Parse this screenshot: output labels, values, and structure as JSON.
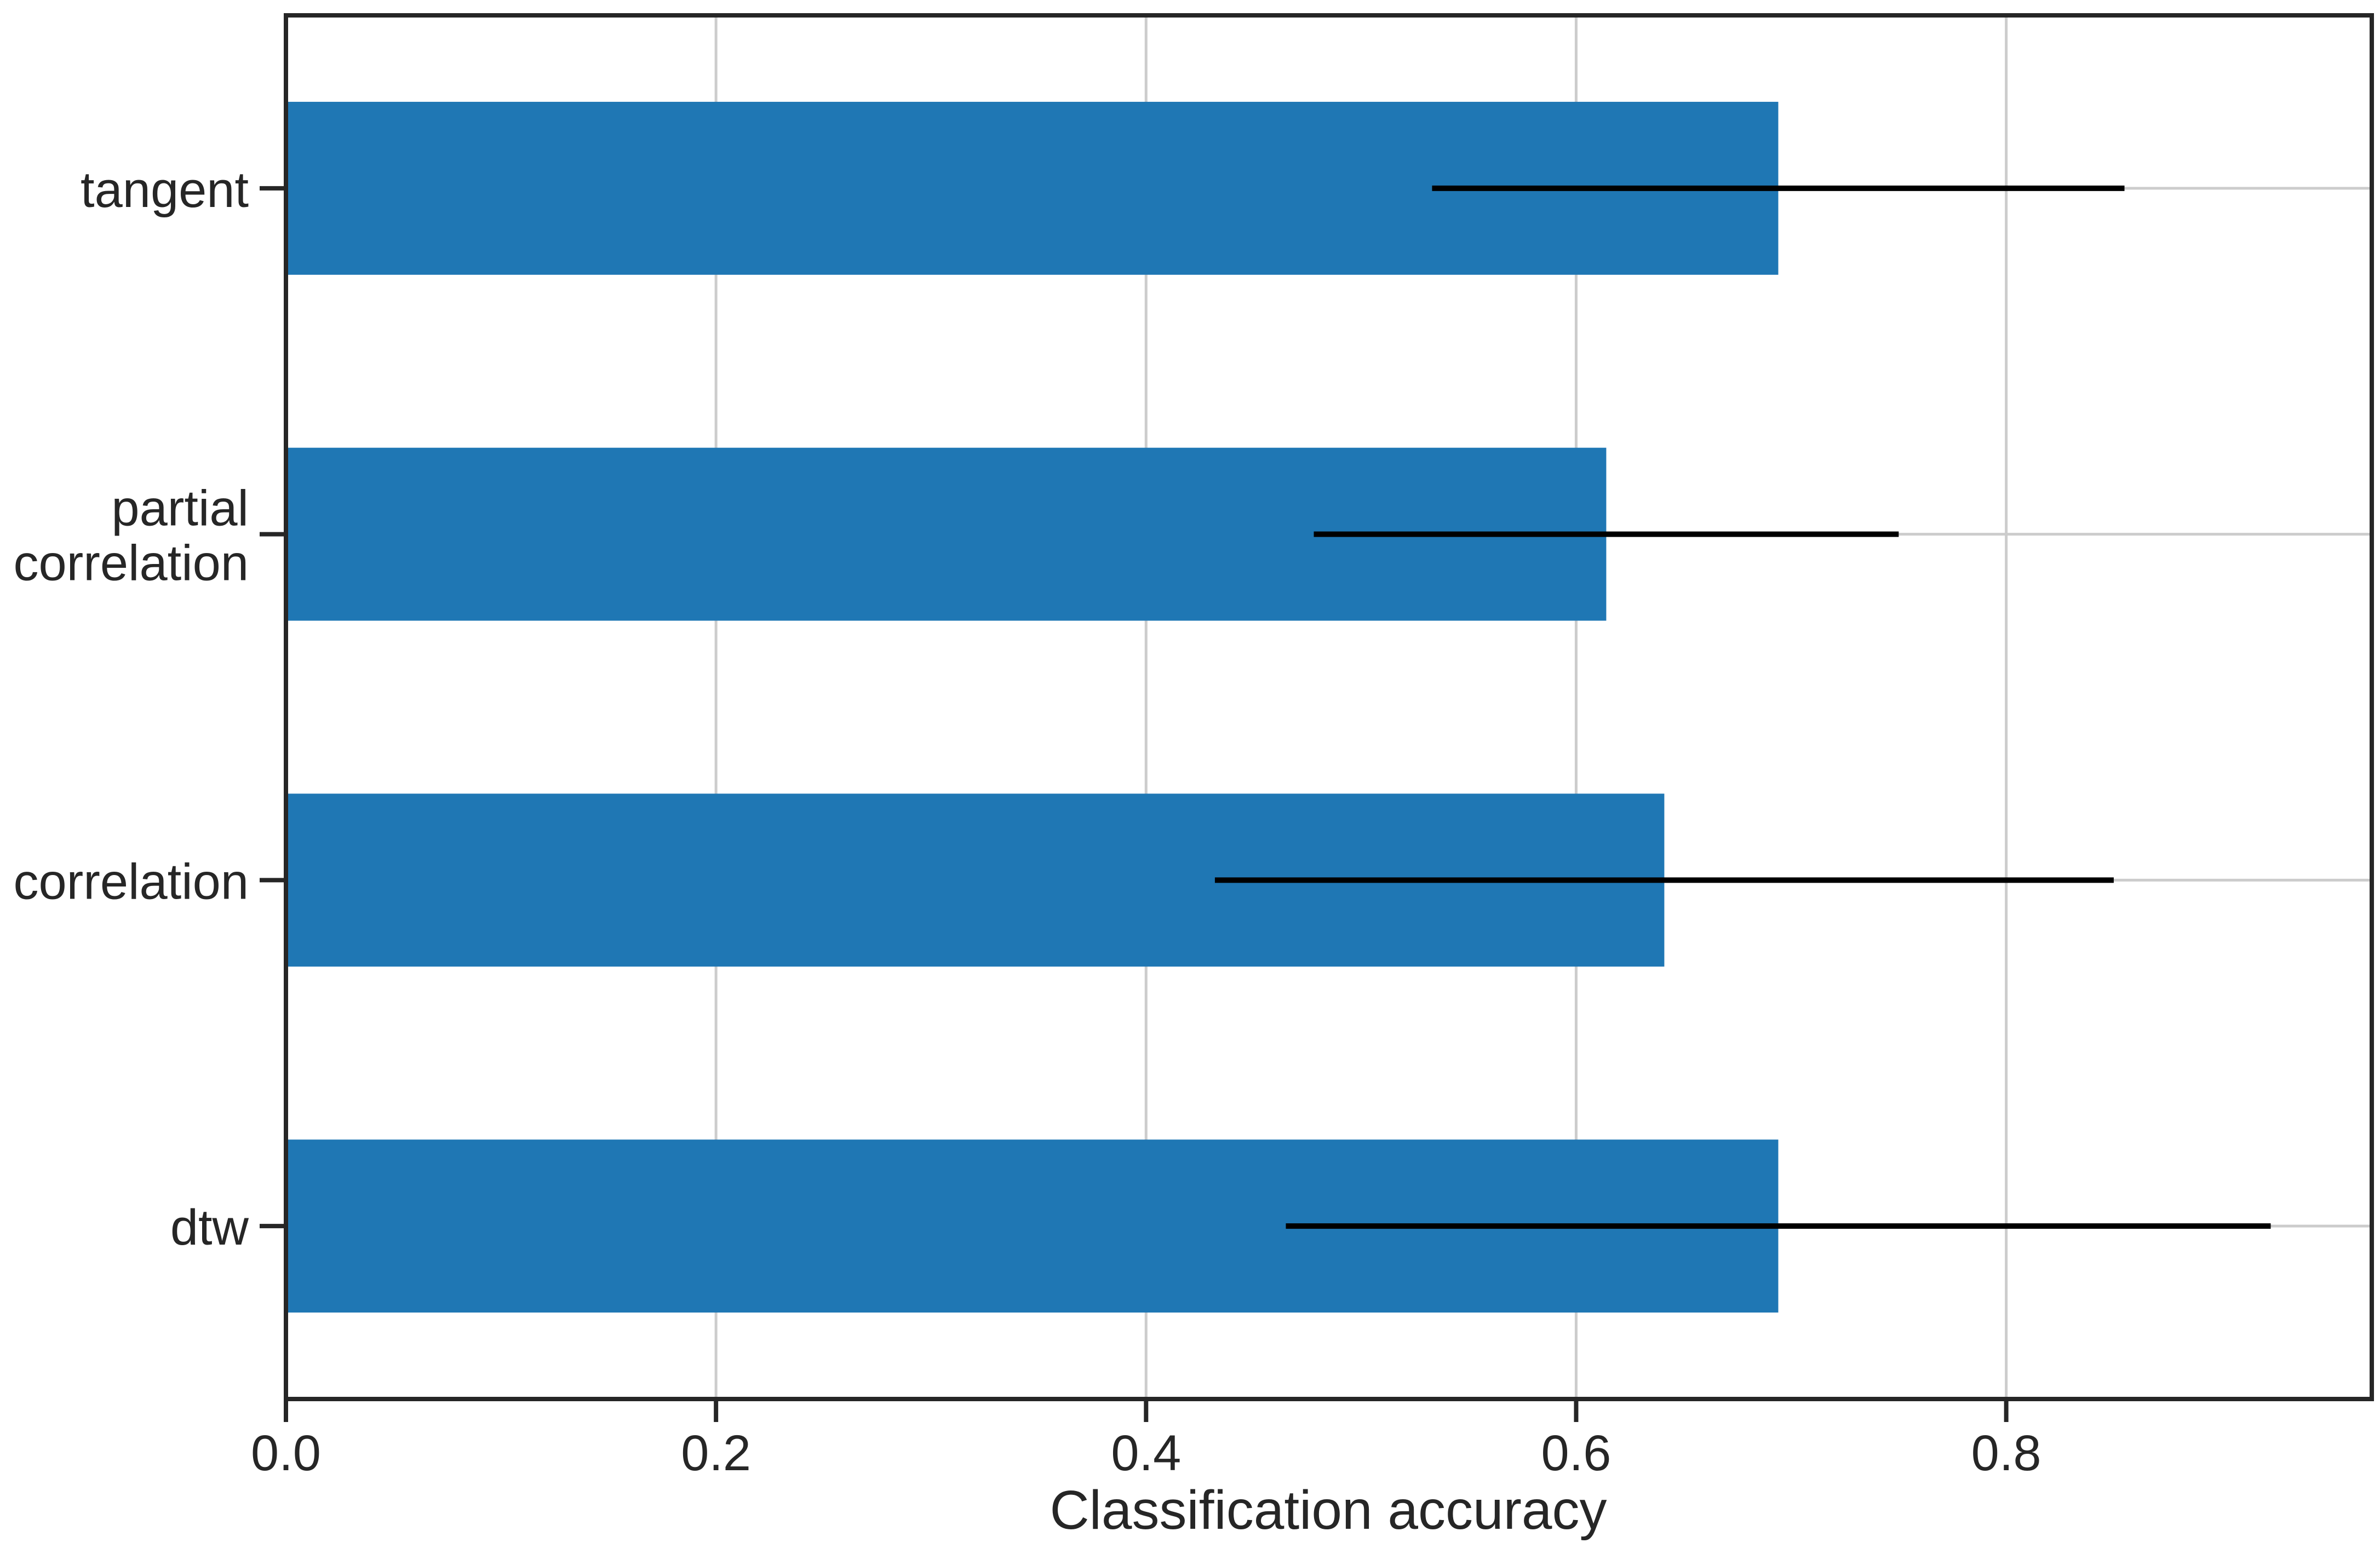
{
  "chart_data": {
    "type": "bar",
    "orientation": "horizontal",
    "categories": [
      "dtw",
      "correlation",
      "partial\ncorrelation",
      "tangent"
    ],
    "values": [
      0.694,
      0.641,
      0.614,
      0.694
    ],
    "error_low": [
      0.465,
      0.432,
      0.478,
      0.533
    ],
    "error_high": [
      0.923,
      0.85,
      0.75,
      0.855
    ],
    "xlabel": "Classification accuracy",
    "ylabel": "",
    "xlim": [
      0.0,
      0.97
    ],
    "xticks": [
      "0.0",
      "0.2",
      "0.4",
      "0.6",
      "0.8"
    ],
    "grid": true,
    "bar_color": "#1f77b4",
    "error_color": "#000000",
    "grid_color": "#cccccc",
    "axis_color": "#262626"
  }
}
